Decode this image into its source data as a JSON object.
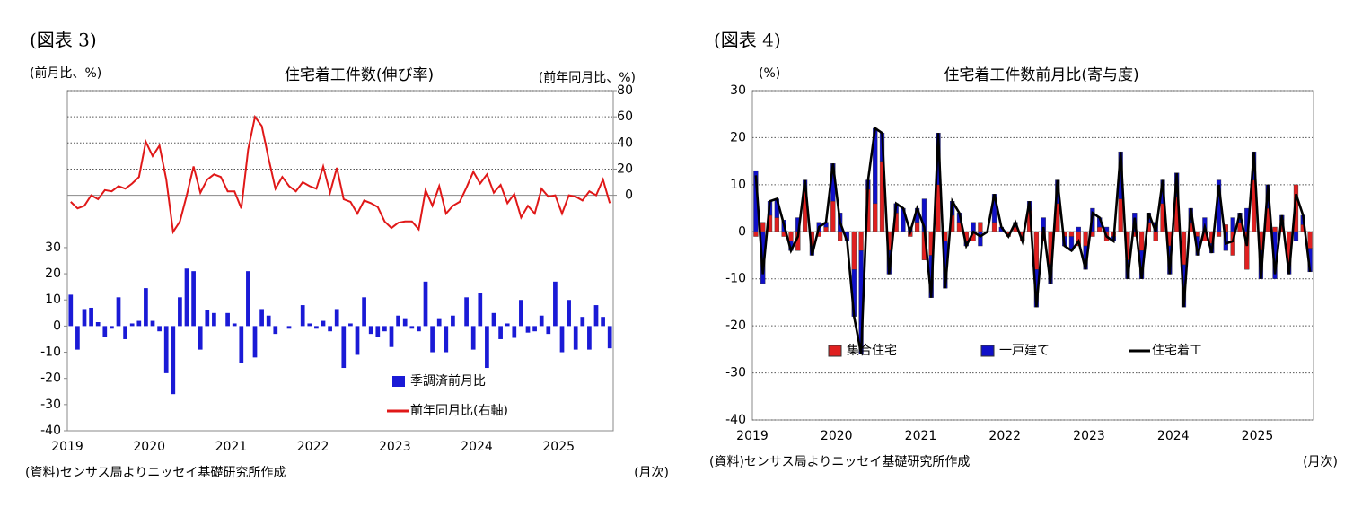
{
  "chart_data": [
    {
      "type": "combo",
      "figure_label": "(図表 3)",
      "title": "住宅着工件数(伸び率)",
      "y_label": "(前月比、%)",
      "y2_label": "(前年同月比、%)",
      "source": "(資料)センサス局よりニッセイ基礎研究所作成",
      "x_unit": "(月次)",
      "categories": [
        "2019",
        null,
        null,
        null,
        null,
        null,
        null,
        null,
        null,
        null,
        null,
        null,
        "2020",
        null,
        null,
        null,
        null,
        null,
        null,
        null,
        null,
        null,
        null,
        null,
        "2021",
        null,
        null,
        null,
        null,
        null,
        null,
        null,
        null,
        null,
        null,
        null,
        "2022",
        null,
        null,
        null,
        null,
        null,
        null,
        null,
        null,
        null,
        null,
        null,
        "2023",
        null,
        null,
        null,
        null,
        null,
        null,
        null,
        null,
        null,
        null,
        null,
        "2024",
        null,
        null,
        null,
        null,
        null,
        null,
        null,
        null,
        null,
        null,
        null,
        "2025",
        null,
        null,
        null,
        null,
        null,
        null,
        null
      ],
      "ylim": [
        -40,
        90
      ],
      "yticks": [
        -40,
        -30,
        -20,
        -10,
        0,
        10,
        20,
        30
      ],
      "y2lim": [
        -180,
        80
      ],
      "y2ticks": [
        0,
        20,
        40,
        60,
        80
      ],
      "grid": true,
      "legend": "lower right",
      "series": [
        {
          "name": "季調済前月比",
          "type": "bar",
          "color": "#1a1ad6",
          "values": [
            12,
            -9,
            6.5,
            7,
            1.5,
            -4,
            -1,
            11,
            -5,
            1,
            2,
            14.5,
            2,
            -2,
            -18,
            -26,
            11,
            22,
            21,
            -9,
            6,
            5,
            0,
            5,
            1,
            -14,
            21,
            -12,
            6.5,
            4,
            -3,
            0,
            -1,
            0,
            8,
            1,
            -1,
            2,
            -2,
            6.5,
            -16,
            1,
            -11,
            11,
            -3,
            -4,
            -2,
            -8,
            4,
            3,
            -1,
            -2,
            17,
            -10,
            3,
            -10,
            4,
            0,
            11,
            -9,
            12.5,
            -16,
            5,
            -5,
            1,
            -4.5,
            10,
            -2.5,
            -2,
            4,
            -3,
            17,
            -10,
            10,
            -9,
            3.5,
            -9,
            8,
            3.5,
            -8.5
          ]
        },
        {
          "name": "前年同月比(右軸)",
          "type": "line",
          "axis": "y2",
          "color": "#e01818",
          "values": [
            -5,
            -10,
            -8,
            0,
            -3,
            4,
            3,
            7,
            5,
            9,
            14,
            41,
            30,
            38,
            12,
            -28,
            -20,
            0,
            22,
            2,
            12,
            16,
            14,
            3,
            3,
            -10,
            35,
            60,
            53,
            28,
            5,
            14,
            7,
            3,
            10,
            7,
            5,
            22,
            2,
            21,
            -3,
            -5,
            -14,
            -4,
            -6,
            -9,
            -20,
            -25,
            -21,
            -20,
            -20,
            -26,
            4,
            -8,
            7,
            -14,
            -8,
            -5,
            6,
            18,
            9,
            16,
            2,
            8,
            -6,
            1,
            -17,
            -8,
            -14,
            5,
            -1,
            0,
            -14,
            0,
            -1,
            -4,
            3,
            0,
            12,
            -6
          ]
        }
      ]
    },
    {
      "type": "combo",
      "figure_label": "(図表 4)",
      "title": "住宅着工件数前月比(寄与度)",
      "y_label": "(%)",
      "source": "(資料)センサス局よりニッセイ基礎研究所作成",
      "x_unit": "(月次)",
      "categories": [
        "2019",
        null,
        null,
        null,
        null,
        null,
        null,
        null,
        null,
        null,
        null,
        null,
        "2020",
        null,
        null,
        null,
        null,
        null,
        null,
        null,
        null,
        null,
        null,
        null,
        "2021",
        null,
        null,
        null,
        null,
        null,
        null,
        null,
        null,
        null,
        null,
        null,
        "2022",
        null,
        null,
        null,
        null,
        null,
        null,
        null,
        null,
        null,
        null,
        null,
        "2023",
        null,
        null,
        null,
        null,
        null,
        null,
        null,
        null,
        null,
        null,
        null,
        "2024",
        null,
        null,
        null,
        null,
        null,
        null,
        null,
        null,
        null,
        null,
        null,
        "2025",
        null,
        null,
        null,
        null,
        null,
        null,
        null
      ],
      "ylim": [
        -40,
        30
      ],
      "yticks": [
        -40,
        -30,
        -20,
        -10,
        0,
        10,
        20,
        30
      ],
      "grid": true,
      "stacked": true,
      "legend": "lower center",
      "series": [
        {
          "name": "集合住宅",
          "type": "bar",
          "color": "#e02020",
          "values": [
            -1,
            2,
            3.5,
            3,
            -1,
            -2,
            -4,
            9,
            -3,
            -1,
            1,
            6.5,
            -2,
            0,
            -8,
            -4,
            9,
            6,
            15,
            -4,
            4,
            0,
            -1,
            2,
            -6,
            -5,
            10,
            -2,
            3.5,
            2,
            -2,
            -2,
            2,
            0,
            2,
            0,
            -1,
            1,
            -2,
            4.5,
            -8,
            -2,
            -7,
            6,
            -1,
            -1,
            -3,
            -3,
            -1,
            1,
            -2,
            -1,
            7,
            -6,
            -1,
            -4,
            2,
            -2,
            6,
            -3,
            7.5,
            -7,
            2,
            -1,
            -2,
            -2.5,
            -1,
            1.5,
            -5,
            2,
            -8,
            11,
            -4,
            5,
            1,
            2.5,
            -7,
            10,
            1.5,
            -3.5
          ]
        },
        {
          "name": "一戸建て",
          "type": "bar",
          "color": "#1010c8",
          "values": [
            13,
            -11,
            3,
            4,
            2.5,
            -2,
            3,
            2,
            -2,
            2,
            1,
            8,
            4,
            -2,
            -10,
            -22,
            2,
            16,
            6,
            -5,
            2,
            5,
            1,
            3,
            7,
            -9,
            11,
            -10,
            3,
            2,
            -1,
            2,
            -3,
            0,
            6,
            1,
            0,
            1,
            0,
            2,
            -8,
            3,
            -4,
            5,
            -2,
            -3,
            1,
            -5,
            5,
            2,
            1,
            -1,
            10,
            -4,
            4,
            -6,
            2,
            2,
            5,
            -6,
            5,
            -9,
            3,
            -4,
            3,
            -2,
            11,
            -4,
            3,
            2,
            5,
            6,
            -6,
            5,
            -10,
            1,
            -2,
            -2,
            2,
            -5
          ]
        },
        {
          "name": "住宅着工",
          "type": "line",
          "color": "#000000",
          "values": [
            12,
            -9,
            6.5,
            7,
            1.5,
            -4,
            -1,
            11,
            -5,
            1,
            2,
            14.5,
            2,
            -2,
            -18,
            -26,
            11,
            22,
            21,
            -9,
            6,
            5,
            0,
            5,
            1,
            -14,
            21,
            -12,
            6.5,
            4,
            -3,
            0,
            -1,
            0,
            8,
            1,
            -1,
            2,
            -2,
            6.5,
            -16,
            1,
            -11,
            11,
            -3,
            -4,
            -2,
            -8,
            4,
            3,
            -1,
            -2,
            17,
            -10,
            3,
            -10,
            4,
            0,
            11,
            -9,
            12.5,
            -16,
            5,
            -5,
            1,
            -4.5,
            10,
            -2.5,
            -2,
            4,
            -3,
            17,
            -10,
            10,
            -9,
            3.5,
            -9,
            8,
            3.5,
            -8.5
          ]
        }
      ]
    }
  ]
}
